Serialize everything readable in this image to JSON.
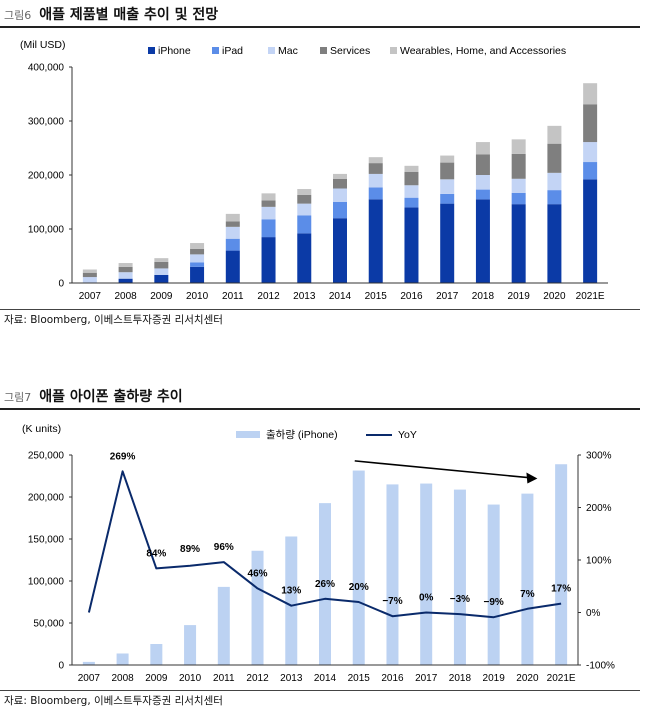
{
  "figures": [
    {
      "num": "그림6",
      "title": "애플 제품별 매출 추이 및 전망",
      "source": "자료: Bloomberg, 이베스트투자증권 리서치센터"
    },
    {
      "num": "그림7",
      "title": "애플 아이폰 출하량 추이",
      "source": "자료: Bloomberg, 이베스트투자증권 리서치센터"
    }
  ],
  "colors": {
    "iPhone": "#0b3aa6",
    "iPad": "#5b8de8",
    "Mac": "#c3d4f5",
    "Services": "#7f7f7f",
    "Wearables": "#c4c4c4",
    "shipment_bar": "#bcd2f2",
    "yoy_line": "#0a2a6b"
  },
  "chart_data": [
    {
      "type": "bar",
      "stacked": true,
      "title": "애플 제품별 매출 추이 및 전망",
      "ylabel": "(Mil USD)",
      "ylim": [
        0,
        400000
      ],
      "yticks": [
        "0",
        "100,000",
        "200,000",
        "300,000",
        "400,000"
      ],
      "legend_position": "top",
      "categories": [
        "2007",
        "2008",
        "2009",
        "2010",
        "2011",
        "2012",
        "2013",
        "2014",
        "2015",
        "2016",
        "2017",
        "2018",
        "2019",
        "2020",
        "2021E"
      ],
      "series": [
        {
          "name": "iPhone",
          "values": [
            1000,
            8000,
            15000,
            30000,
            60000,
            85000,
            92000,
            120000,
            155000,
            140000,
            147000,
            155000,
            146000,
            146000,
            192000
          ]
        },
        {
          "name": "iPad",
          "values": [
            0,
            0,
            0,
            8000,
            22000,
            33000,
            33000,
            30000,
            22000,
            18000,
            18000,
            18000,
            21000,
            26000,
            32000
          ]
        },
        {
          "name": "Mac",
          "values": [
            10000,
            12000,
            12000,
            15000,
            22000,
            23000,
            22000,
            25000,
            25000,
            23000,
            27000,
            27000,
            26000,
            32000,
            37000
          ]
        },
        {
          "name": "Services",
          "values": [
            8000,
            10000,
            12000,
            10000,
            10000,
            12000,
            16000,
            18000,
            20000,
            25000,
            31000,
            38000,
            46000,
            54000,
            70000
          ]
        },
        {
          "name": "Wearables, Home, and Accessories",
          "values": [
            6000,
            7000,
            7000,
            11000,
            14000,
            13000,
            11000,
            9000,
            11000,
            11000,
            13000,
            23000,
            27000,
            33000,
            39000
          ]
        }
      ]
    },
    {
      "type": "bar+line",
      "title": "애플 아이폰 출하량 추이",
      "ylabel": "(K units)",
      "ylim": [
        0,
        250000
      ],
      "yticks": [
        "0",
        "50,000",
        "100,000",
        "150,000",
        "200,000",
        "250,000"
      ],
      "y2lim": [
        -100,
        300
      ],
      "y2ticks": [
        "-100%",
        "0%",
        "100%",
        "200%",
        "300%"
      ],
      "legend_position": "top",
      "categories": [
        "2007",
        "2008",
        "2009",
        "2010",
        "2011",
        "2012",
        "2013",
        "2014",
        "2015",
        "2016",
        "2017",
        "2018",
        "2019",
        "2020",
        "2021E"
      ],
      "series": [
        {
          "name": "출하량 (iPhone)",
          "kind": "bar",
          "values": [
            3700,
            13700,
            25000,
            47500,
            93000,
            136000,
            153000,
            192700,
            231500,
            215000,
            216000,
            208800,
            191000,
            204000,
            239000
          ]
        },
        {
          "name": "YoY",
          "kind": "line",
          "values": [
            0,
            269,
            84,
            89,
            96,
            46,
            13,
            26,
            20,
            -7,
            0,
            -3,
            -9,
            7,
            17
          ]
        }
      ],
      "data_labels": [
        "",
        "269%",
        "84%",
        "89%",
        "96%",
        "46%",
        "13%",
        "26%",
        "20%",
        "−7%",
        "0%",
        "−3%",
        "−9%",
        "7%",
        "17%"
      ],
      "annotation": "downward trend arrow from 2015 to 2020"
    }
  ]
}
